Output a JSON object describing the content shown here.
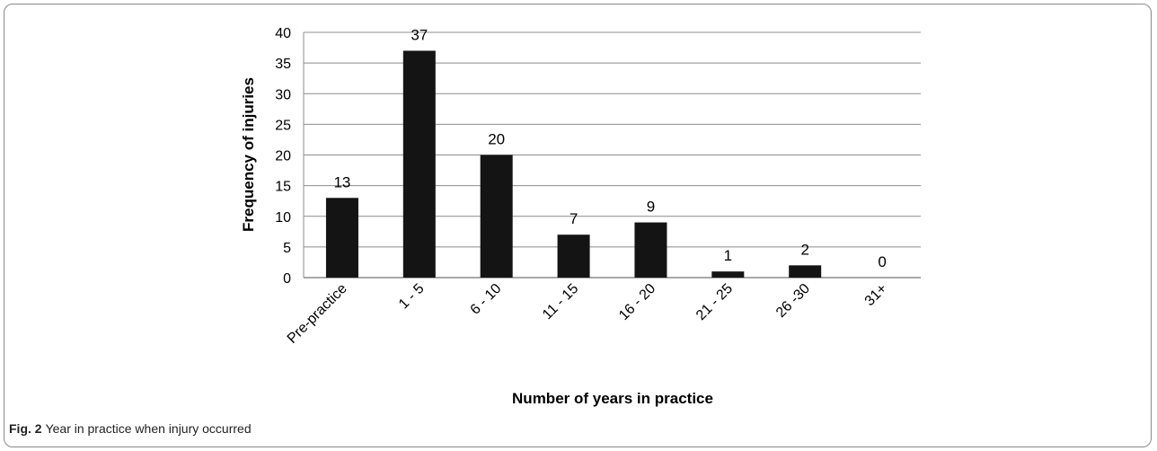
{
  "caption": {
    "label": "Fig. 2",
    "text": "Year in practice when injury occurred"
  },
  "chart_data": {
    "type": "bar",
    "title": "",
    "xlabel": "Number of years in practice",
    "ylabel": "Frequency of injuries",
    "categories": [
      "Pre-practice",
      "1 - 5",
      "6 - 10",
      "11 - 15",
      "16 - 20",
      "21 - 25",
      "26 -30",
      "31+"
    ],
    "values": [
      13,
      37,
      20,
      7,
      9,
      1,
      2,
      0
    ],
    "data_labels": [
      "13",
      "37",
      "20",
      "7",
      "9",
      "1",
      "2",
      "0"
    ],
    "ylim": [
      0,
      40
    ],
    "yticks": [
      0,
      5,
      10,
      15,
      20,
      25,
      30,
      35,
      40
    ],
    "grid": true,
    "legend": "none",
    "colors": {
      "bar": "#141414",
      "grid": "#8c8c8c",
      "axis": "#8c8c8c"
    }
  }
}
